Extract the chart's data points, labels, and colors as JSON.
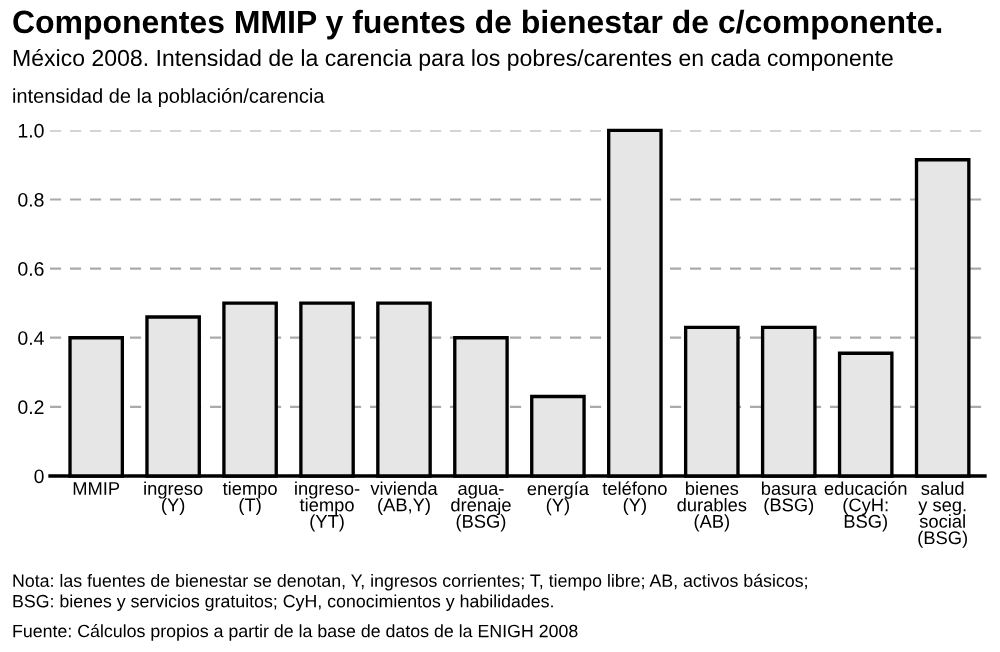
{
  "chart_data": {
    "type": "bar",
    "title": "Componentes MMIP y fuentes de bienestar de c/componente.",
    "subtitle": "México 2008. Intensidad de la carencia para los pobres/carentes en cada componente",
    "ylabel": "intensidad de la población/carencia",
    "categories": [
      "MMIP",
      "ingreso\n(Y)",
      "tiempo\n(T)",
      "ingreso-\ntiempo\n(YT)",
      "vivienda\n(AB,Y)",
      "agua-\ndrenaje\n(BSG)",
      "energía\n(Y)",
      "teléfono\n(Y)",
      "bienes\ndurables\n(AB)",
      "basura\n(BSG)",
      "educación\n(CyH:\nBSG)",
      "salud\ny seg.\nsocial\n(BSG)"
    ],
    "values": [
      0.4,
      0.46,
      0.5,
      0.5,
      0.5,
      0.4,
      0.23,
      1.0,
      0.43,
      0.43,
      0.355,
      0.915
    ],
    "color": "#e6e6e6",
    "ylim": [
      0,
      1.0
    ],
    "yticks": [
      {
        "value": 0,
        "label": "0"
      },
      {
        "value": 0.2,
        "label": "0.2"
      },
      {
        "value": 0.4,
        "label": "0.4"
      },
      {
        "value": 0.6,
        "label": "0.6"
      },
      {
        "value": 0.8,
        "label": "0.8"
      },
      {
        "value": 1.0,
        "label": "1.0"
      }
    ],
    "grid": "y",
    "annotations": [
      "Nota: las fuentes de bienestar se denotan, Y, ingresos corrientes; T, tiempo libre; AB, activos básicos;\nBSG: bienes y servicios gratuitos; CyH, conocimientos y habilidades.",
      "Fuente: Cálculos propios a partir de la base de datos de la ENIGH 2008"
    ]
  }
}
